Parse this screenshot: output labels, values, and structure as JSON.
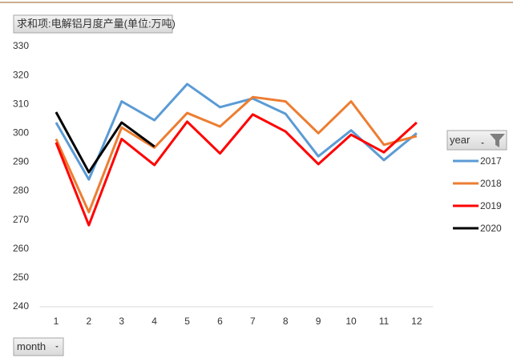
{
  "chart_data": {
    "type": "line",
    "title": "求和项:电解铝月度产量(单位:万吨)",
    "x_field": "month",
    "legend_title": "year",
    "legend": "right",
    "grid": false,
    "categories": [
      "1",
      "2",
      "3",
      "4",
      "5",
      "6",
      "7",
      "8",
      "9",
      "10",
      "11",
      "12"
    ],
    "ylim": [
      240,
      330
    ],
    "yticks": [
      240,
      250,
      260,
      270,
      280,
      290,
      300,
      310,
      320,
      330
    ],
    "series": [
      {
        "name": "2017",
        "color": "#5b9bd5",
        "values": [
          303.7,
          284,
          311,
          304.5,
          317,
          309,
          312,
          306.7,
          292,
          301,
          290.7,
          300
        ]
      },
      {
        "name": "2018",
        "color": "#ed7d31",
        "values": [
          298,
          272.7,
          302,
          295,
          307,
          302.3,
          312.5,
          311,
          300,
          311,
          296,
          299
        ]
      },
      {
        "name": "2019",
        "color": "#ff0000",
        "values": [
          296.8,
          268.2,
          298,
          289,
          304,
          293,
          306.5,
          300.6,
          289.3,
          299.5,
          293.4,
          303.7
        ]
      },
      {
        "name": "2020",
        "color": "#000000",
        "values": [
          307.3,
          286.5,
          303.7,
          295.4,
          null,
          null,
          null,
          null,
          null,
          null,
          null,
          null
        ]
      }
    ]
  }
}
